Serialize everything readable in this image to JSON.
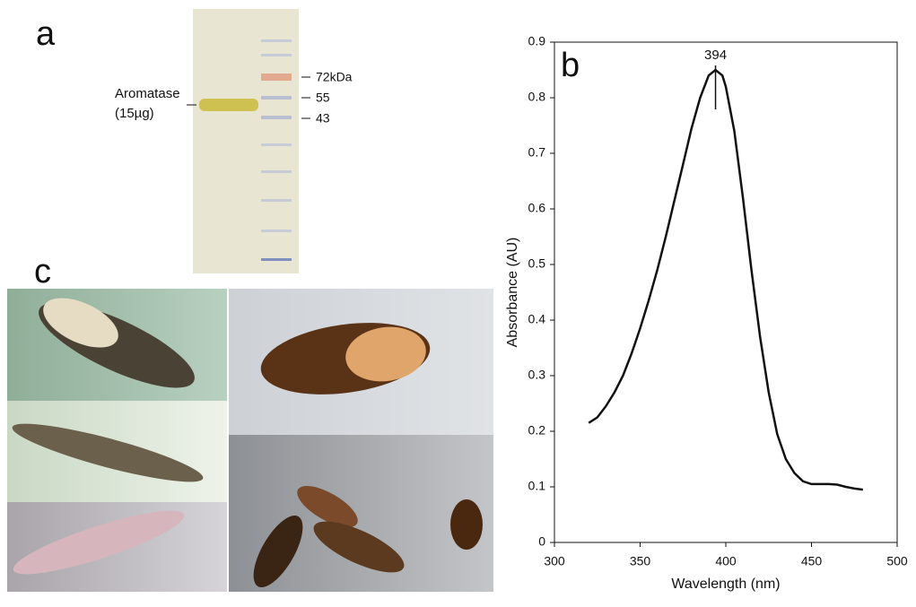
{
  "panel_a": {
    "label": "a",
    "protein": "Aromatase",
    "amount": "(15µg)",
    "markers": [
      "72kDa",
      "55",
      "43"
    ]
  },
  "panel_c": {
    "label": "c"
  },
  "chart_data": {
    "type": "line",
    "panel_label": "b",
    "x_label": "Wavelength (nm)",
    "y_label": "Absorbance (AU)",
    "x": [
      320,
      325,
      330,
      335,
      340,
      345,
      350,
      355,
      360,
      365,
      370,
      375,
      380,
      385,
      390,
      394,
      398,
      400,
      405,
      410,
      415,
      420,
      425,
      430,
      435,
      440,
      445,
      450,
      455,
      460,
      465,
      470,
      475,
      480
    ],
    "values": [
      0.215,
      0.225,
      0.245,
      0.27,
      0.3,
      0.34,
      0.385,
      0.435,
      0.49,
      0.55,
      0.615,
      0.68,
      0.745,
      0.8,
      0.84,
      0.85,
      0.84,
      0.82,
      0.74,
      0.62,
      0.49,
      0.37,
      0.27,
      0.195,
      0.15,
      0.125,
      0.11,
      0.105,
      0.105,
      0.105,
      0.104,
      0.1,
      0.097,
      0.095
    ],
    "color": "#111111",
    "peak_annotation": 394,
    "xlim": [
      300,
      500
    ],
    "xticks": [
      300,
      350,
      400,
      450,
      500
    ],
    "ylim": [
      0,
      0.9
    ],
    "yticks": [
      0,
      0.1,
      0.2,
      0.3,
      0.4,
      0.5,
      0.6,
      0.7,
      0.8,
      0.9
    ]
  }
}
